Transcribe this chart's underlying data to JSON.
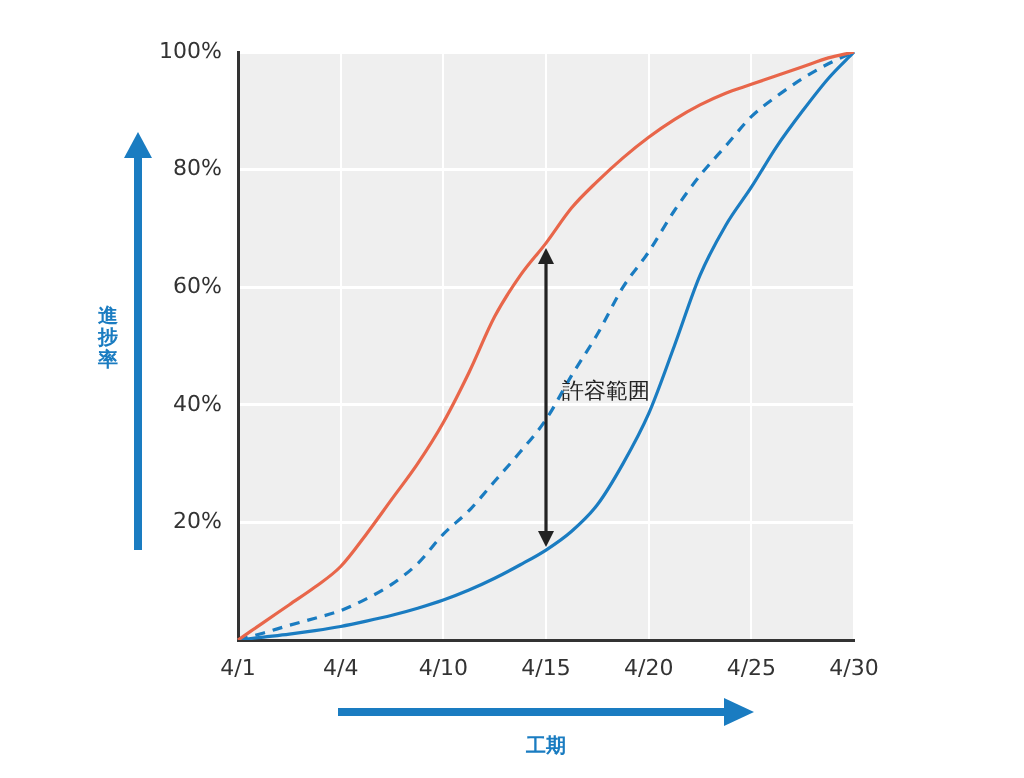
{
  "chart_data": {
    "type": "line",
    "xlabel": "工期",
    "ylabel": "進捗率",
    "categories": [
      "4/1",
      null,
      null,
      null,
      "4/4",
      null,
      null,
      null,
      "4/10",
      null,
      null,
      null,
      "4/15",
      null,
      null,
      null,
      "4/20",
      null,
      null,
      null,
      "4/25",
      null,
      null,
      null,
      "4/30"
    ],
    "series": [
      {
        "color": "#e8664a",
        "line_style": "solid",
        "values": [
          0,
          3,
          6,
          9,
          12.5,
          18,
          24,
          30,
          37,
          45.5,
          55,
          62,
          67.5,
          73.5,
          78,
          82,
          85.5,
          88.5,
          91,
          93,
          94.5,
          96,
          97.5,
          99,
          100
        ]
      },
      {
        "color": "#1a7cc1",
        "line_style": "dashed",
        "values": [
          0,
          1.2,
          2.5,
          3.7,
          5,
          7,
          9.5,
          13,
          18,
          22,
          27,
          32,
          37.5,
          45,
          52,
          60,
          66,
          73,
          79,
          84,
          89,
          92.5,
          95.5,
          98,
          100
        ]
      },
      {
        "color": "#1a7cc1",
        "line_style": "solid",
        "values": [
          0,
          0.5,
          1,
          1.6,
          2.3,
          3.2,
          4.2,
          5.4,
          6.8,
          8.5,
          10.5,
          12.8,
          15.3,
          18.5,
          23,
          30,
          38.5,
          50,
          62,
          70.5,
          77,
          84,
          90,
          95.5,
          100
        ]
      }
    ],
    "ylim": [
      0,
      100
    ],
    "yticks": [
      {
        "value": 20,
        "label": "20%"
      },
      {
        "value": 40,
        "label": "40%"
      },
      {
        "value": 60,
        "label": "60%"
      },
      {
        "value": 80,
        "label": "80%"
      },
      {
        "value": 100,
        "label": "100%"
      }
    ],
    "grid": true,
    "legend": false,
    "marker": "none",
    "annotations": [
      "許容範囲"
    ]
  }
}
